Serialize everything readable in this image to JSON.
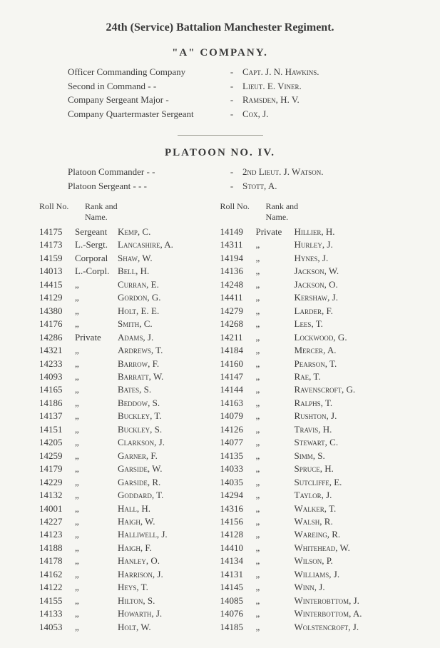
{
  "title": "24th (Service) Battalion Manchester Regiment.",
  "company_heading": "\"A\"  COMPANY.",
  "officers": [
    {
      "label": "Officer Commanding Company",
      "dash": "-",
      "name": "Capt. J. N. Hawkins."
    },
    {
      "label": "Second in Command        -     -",
      "dash": "-",
      "name": "Lieut. E. Viner."
    },
    {
      "label": "Company Sergeant Major     -",
      "dash": "-",
      "name": "Ramsden, H. V."
    },
    {
      "label": "Company Quartermaster Sergeant",
      "dash": "-",
      "name": "Cox, J."
    }
  ],
  "platoon_heading": "PLATOON  NO.  IV.",
  "platoon_officers": [
    {
      "label": "Platoon Commander     -     -",
      "dash": "-",
      "name": "2nd Lieut. J. Watson."
    },
    {
      "label": "Platoon Sergeant   -     -     -",
      "dash": "-",
      "name": "Stott, A."
    }
  ],
  "headers": {
    "roll": "Roll No.",
    "rankname": "Rank and Name."
  },
  "left": [
    {
      "roll": "14175",
      "rank": "Sergeant",
      "name": "Kemp, C."
    },
    {
      "roll": "14173",
      "rank": "L.-Sergt.",
      "name": "Lancashire, A."
    },
    {
      "roll": "14159",
      "rank": "Corporal",
      "name": "Shaw, W."
    },
    {
      "roll": "14013",
      "rank": "L.-Corpl.",
      "name": "Bell, H."
    },
    {
      "roll": "14415",
      "rank": "„",
      "name": "Curran, E."
    },
    {
      "roll": "14129",
      "rank": "„",
      "name": "Gordon, G."
    },
    {
      "roll": "14380",
      "rank": "„",
      "name": "Holt, E. E."
    },
    {
      "roll": "14176",
      "rank": "„",
      "name": "Smith, C."
    },
    {
      "roll": "14286",
      "rank": "Private",
      "name": "Adams, J."
    },
    {
      "roll": "14321",
      "rank": "„",
      "name": "Ardrews, T."
    },
    {
      "roll": "14233",
      "rank": "„",
      "name": "Barrow, F."
    },
    {
      "roll": "14093",
      "rank": "„",
      "name": "Barratt, W."
    },
    {
      "roll": "14165",
      "rank": "„",
      "name": "Bates, S."
    },
    {
      "roll": "14186",
      "rank": "„",
      "name": "Beddow, S."
    },
    {
      "roll": "14137",
      "rank": "„",
      "name": "Buckley, T."
    },
    {
      "roll": "14151",
      "rank": "„",
      "name": "Buckley, S."
    },
    {
      "roll": "14205",
      "rank": "„",
      "name": "Clarkson, J."
    },
    {
      "roll": "14259",
      "rank": "„",
      "name": "Garner, F."
    },
    {
      "roll": "14179",
      "rank": "„",
      "name": "Garside, W."
    },
    {
      "roll": "14229",
      "rank": "„",
      "name": "Garside, R."
    },
    {
      "roll": "14132",
      "rank": "„",
      "name": "Goddard, T."
    },
    {
      "roll": "14001",
      "rank": "„",
      "name": "Hall, H."
    },
    {
      "roll": "14227",
      "rank": "„",
      "name": "Haigh, W."
    },
    {
      "roll": "14123",
      "rank": "„",
      "name": "Halliwell, J."
    },
    {
      "roll": "14188",
      "rank": "„",
      "name": "Haigh, F."
    },
    {
      "roll": "14178",
      "rank": "„",
      "name": "Hanley, O."
    },
    {
      "roll": "14162",
      "rank": "„",
      "name": "Harrison, J."
    },
    {
      "roll": "14122",
      "rank": "„",
      "name": "Heys, T."
    },
    {
      "roll": "14155",
      "rank": "„",
      "name": "Hilton, S."
    },
    {
      "roll": "14133",
      "rank": "„",
      "name": "Howarth, J."
    },
    {
      "roll": "14053",
      "rank": "„",
      "name": "Holt, W."
    }
  ],
  "right": [
    {
      "roll": "14149",
      "rank": "Private",
      "name": "Hillier, H."
    },
    {
      "roll": "14311",
      "rank": "„",
      "name": "Hurley, J."
    },
    {
      "roll": "14194",
      "rank": "„",
      "name": "Hynes, J."
    },
    {
      "roll": "14136",
      "rank": "„",
      "name": "Jackson, W."
    },
    {
      "roll": "14248",
      "rank": "„",
      "name": "Jackson, O."
    },
    {
      "roll": "14411",
      "rank": "„",
      "name": "Kershaw, J."
    },
    {
      "roll": "14279",
      "rank": "„",
      "name": "Larder, F."
    },
    {
      "roll": "14268",
      "rank": "„",
      "name": "Lees, T."
    },
    {
      "roll": "14211",
      "rank": "„",
      "name": "Lockwood, G."
    },
    {
      "roll": "14184",
      "rank": "„",
      "name": "Mercer, A."
    },
    {
      "roll": "14160",
      "rank": "„",
      "name": "Pearson, T."
    },
    {
      "roll": "14147",
      "rank": "„",
      "name": "Rae, T."
    },
    {
      "roll": "14144",
      "rank": "„",
      "name": "Ravenscroft, G."
    },
    {
      "roll": "14163",
      "rank": "„",
      "name": "Ralphs, T."
    },
    {
      "roll": "14079",
      "rank": "„",
      "name": "Rushton, J."
    },
    {
      "roll": "14126",
      "rank": "„",
      "name": "Travis, H."
    },
    {
      "roll": "14077",
      "rank": "„",
      "name": "Stewart, C."
    },
    {
      "roll": "14135",
      "rank": "„",
      "name": "Simm, S."
    },
    {
      "roll": "14033",
      "rank": "„",
      "name": "Spruce, H."
    },
    {
      "roll": "14035",
      "rank": "„",
      "name": "Sutcliffe, E."
    },
    {
      "roll": "14294",
      "rank": "„",
      "name": "Taylor, J."
    },
    {
      "roll": "14316",
      "rank": "„",
      "name": "Walker, T."
    },
    {
      "roll": "14156",
      "rank": "„",
      "name": "Walsh, R."
    },
    {
      "roll": "14128",
      "rank": "„",
      "name": "Wareing, R."
    },
    {
      "roll": "14410",
      "rank": "„",
      "name": "Whitehead, W."
    },
    {
      "roll": "14134",
      "rank": "„",
      "name": "Wilson, P."
    },
    {
      "roll": "14131",
      "rank": "„",
      "name": "Williams, J."
    },
    {
      "roll": "14145",
      "rank": "„",
      "name": "Winn, J."
    },
    {
      "roll": "14085",
      "rank": "„",
      "name": "Winterobttom, J."
    },
    {
      "roll": "14076",
      "rank": "„",
      "name": "Winterbottom, A."
    },
    {
      "roll": "14185",
      "rank": "„",
      "name": "Wolstencroft, J."
    }
  ]
}
